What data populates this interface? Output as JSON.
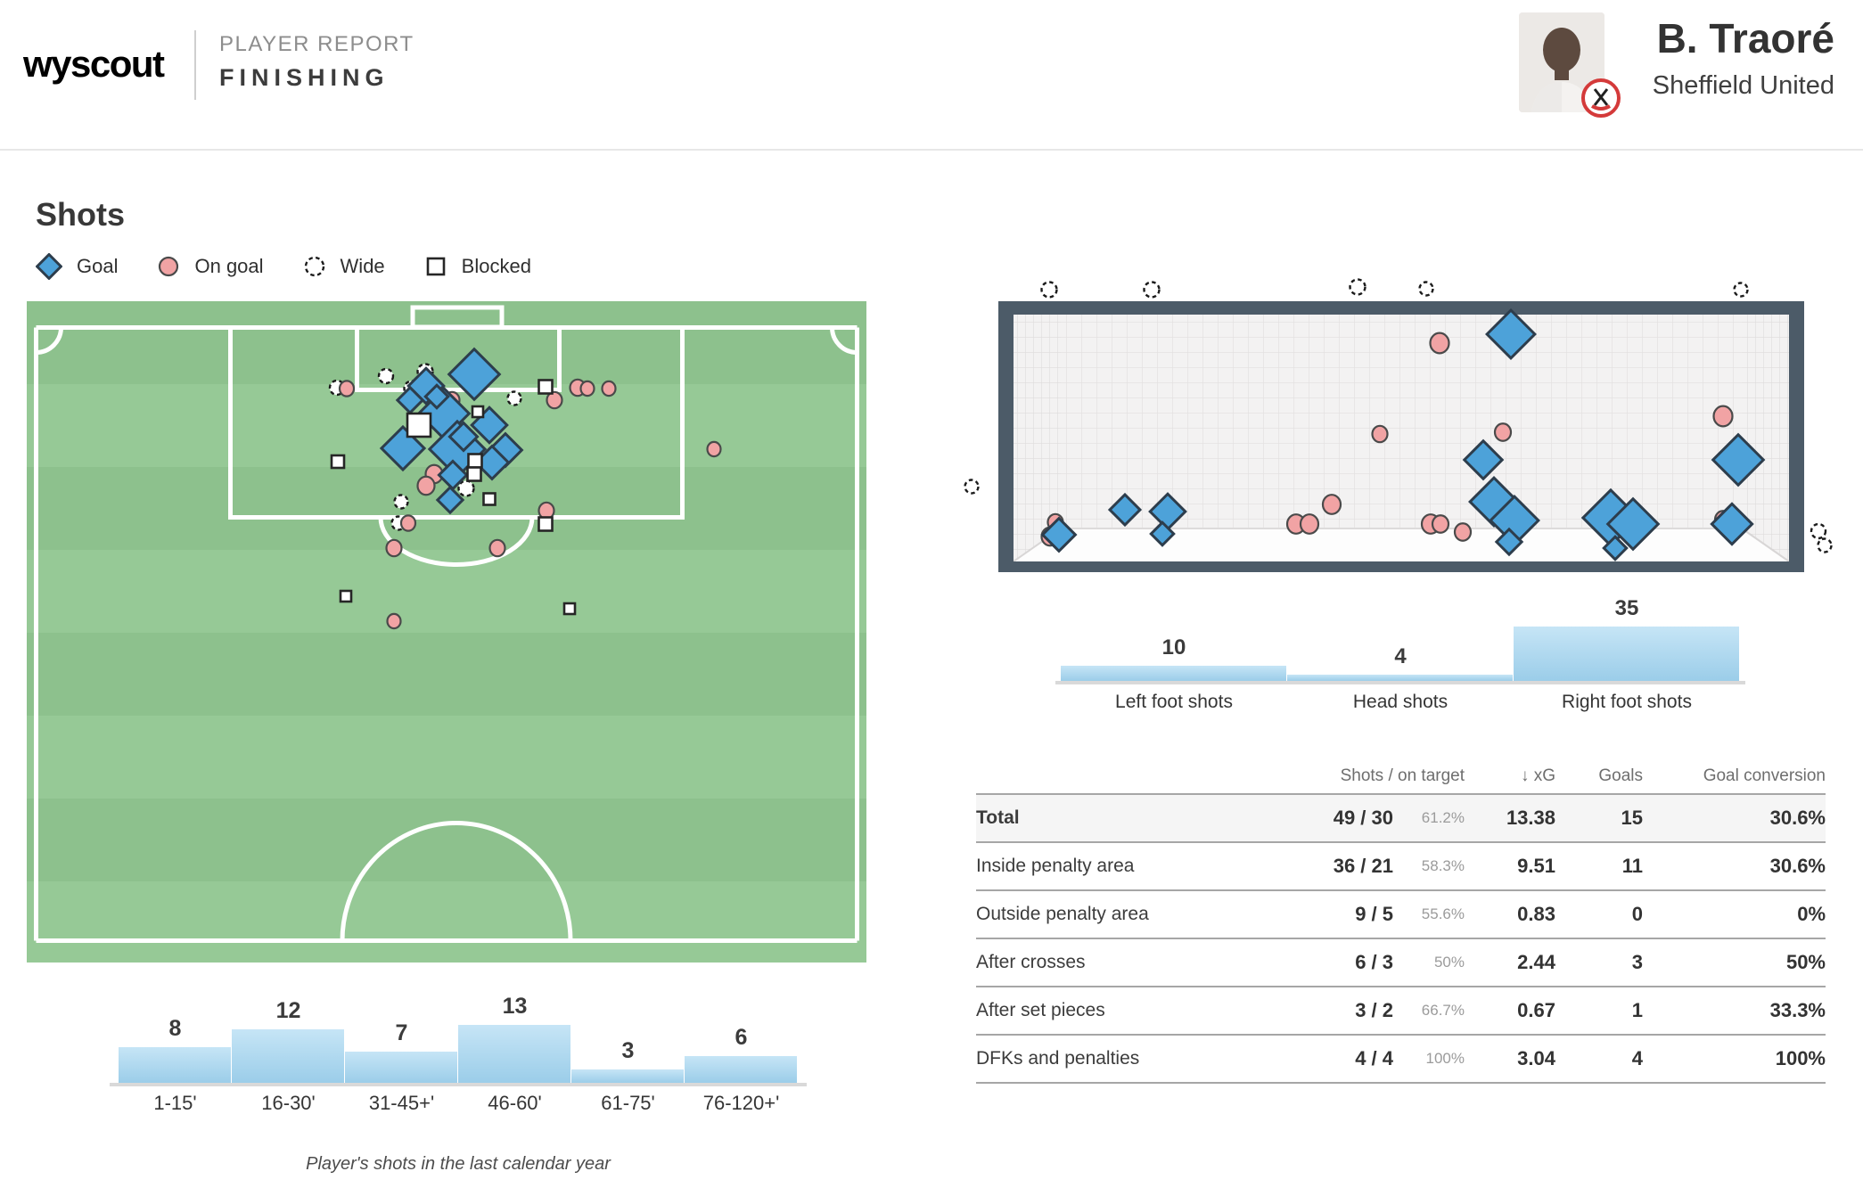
{
  "header": {
    "logo": "wyscout",
    "kicker": "PLAYER REPORT",
    "title": "FINISHING",
    "player_name": "B. Traoré",
    "team": "Sheffield United"
  },
  "shots_section": {
    "title": "Shots",
    "legend": [
      {
        "type": "goal",
        "label": "Goal"
      },
      {
        "type": "on_goal",
        "label": "On goal"
      },
      {
        "type": "wide",
        "label": "Wide"
      },
      {
        "type": "blocked",
        "label": "Blocked"
      }
    ]
  },
  "colors": {
    "goal_marker": "#4da2d9",
    "on_goal_marker": "#f1a3a4",
    "pitch_green_dark": "#8dc18d",
    "pitch_green_light": "#96c996",
    "goal_frame": "#4c5b68",
    "bar_blue_top": "#c6e5f6",
    "bar_blue_bottom": "#9bcde9"
  },
  "chart_data": [
    {
      "type": "scatter",
      "title": "Shot map on pitch (half-pitch, attacking goal at top)",
      "legend": [
        "Goal",
        "On goal",
        "Wide",
        "Blocked"
      ],
      "points": {
        "wide": [
          [
            348,
            97,
            16
          ],
          [
            403,
            84,
            16
          ],
          [
            432,
            98,
            17
          ],
          [
            447,
            79,
            17
          ],
          [
            547,
            109,
            15
          ],
          [
            493,
            210,
            17
          ],
          [
            420,
            225,
            15
          ],
          [
            417,
            249,
            15
          ]
        ],
        "on_goal": [
          [
            359,
            98,
            16
          ],
          [
            477,
            111,
            17
          ],
          [
            457,
            194,
            19
          ],
          [
            448,
            207,
            19
          ],
          [
            592,
            111,
            17
          ],
          [
            618,
            97,
            17
          ],
          [
            629,
            98,
            15
          ],
          [
            653,
            98,
            15
          ],
          [
            583,
            235,
            17
          ],
          [
            412,
            277,
            17
          ],
          [
            528,
            277,
            17
          ],
          [
            412,
            359,
            15
          ],
          [
            771,
            166,
            15
          ],
          [
            428,
            249,
            16
          ]
        ],
        "goal": [
          [
            502,
            82,
            40
          ],
          [
            448,
            95,
            28
          ],
          [
            430,
            111,
            20
          ],
          [
            468,
            126,
            40
          ],
          [
            519,
            139,
            28
          ],
          [
            422,
            165,
            34
          ],
          [
            483,
            166,
            44
          ],
          [
            537,
            167,
            26
          ],
          [
            522,
            181,
            26
          ],
          [
            478,
            195,
            22
          ],
          [
            490,
            152,
            22
          ],
          [
            475,
            223,
            20
          ],
          [
            460,
            107,
            18
          ]
        ],
        "blocked": [
          [
            440,
            139,
            26
          ],
          [
            582,
            96,
            15
          ],
          [
            349,
            180,
            14
          ],
          [
            503,
            179,
            15
          ],
          [
            502,
            194,
            15
          ],
          [
            519,
            222,
            13
          ],
          [
            582,
            250,
            15
          ],
          [
            358,
            331,
            12
          ],
          [
            609,
            345,
            12
          ],
          [
            506,
            124,
            12
          ]
        ]
      }
    },
    {
      "type": "scatter",
      "title": "Shot placement in goal mouth",
      "points": {
        "wide": [
          [
            117,
            15,
            17
          ],
          [
            232,
            15,
            17
          ],
          [
            463,
            12,
            17
          ],
          [
            540,
            14,
            15
          ],
          [
            893,
            15,
            15
          ],
          [
            30,
            236,
            15
          ],
          [
            980,
            286,
            16
          ],
          [
            987,
            302,
            15
          ]
        ],
        "on_goal": [
          [
            555,
            75,
            21
          ],
          [
            873,
            157,
            21
          ],
          [
            488,
            177,
            17
          ],
          [
            626,
            175,
            18
          ],
          [
            118,
            292,
            19
          ],
          [
            124,
            276,
            17
          ],
          [
            394,
            278,
            20
          ],
          [
            409,
            278,
            20
          ],
          [
            434,
            256,
            20
          ],
          [
            545,
            278,
            20
          ],
          [
            556,
            278,
            18
          ],
          [
            581,
            287,
            18
          ],
          [
            873,
            273,
            18
          ]
        ],
        "goal": [
          [
            635,
            65,
            38
          ],
          [
            604,
            206,
            30
          ],
          [
            890,
            206,
            40
          ],
          [
            616,
            253,
            38
          ],
          [
            639,
            274,
            38
          ],
          [
            633,
            298,
            20
          ],
          [
            747,
            271,
            44
          ],
          [
            772,
            278,
            40
          ],
          [
            202,
            262,
            24
          ],
          [
            250,
            264,
            28
          ],
          [
            244,
            289,
            18
          ],
          [
            128,
            290,
            26
          ],
          [
            883,
            278,
            32
          ],
          [
            752,
            305,
            18
          ]
        ]
      }
    },
    {
      "type": "bar",
      "title": "Shots by match period",
      "categories": [
        "1-15'",
        "16-30'",
        "31-45+'",
        "46-60'",
        "61-75'",
        "76-120+'"
      ],
      "values": [
        8,
        12,
        7,
        13,
        3,
        6
      ],
      "caption": "Player's shots in the last calendar year",
      "ylim": [
        0,
        13
      ]
    },
    {
      "type": "bar",
      "title": "Shots by body part",
      "categories": [
        "Left foot shots",
        "Head shots",
        "Right foot shots"
      ],
      "values": [
        10,
        4,
        35
      ],
      "ylim": [
        0,
        35
      ]
    },
    {
      "type": "table",
      "headers": [
        "",
        "Shots / on target",
        "↓ xG",
        "Goals",
        "Goal conversion"
      ],
      "rows": [
        {
          "label": "Total",
          "shots": "49 / 30",
          "pct": "61.2%",
          "xg": "13.38",
          "goals": "15",
          "conv": "30.6%",
          "total": true
        },
        {
          "label": "Inside penalty area",
          "shots": "36 / 21",
          "pct": "58.3%",
          "xg": "9.51",
          "goals": "11",
          "conv": "30.6%"
        },
        {
          "label": "Outside penalty area",
          "shots": "9 / 5",
          "pct": "55.6%",
          "xg": "0.83",
          "goals": "0",
          "conv": "0%"
        },
        {
          "label": "After crosses",
          "shots": "6 / 3",
          "pct": "50%",
          "xg": "2.44",
          "goals": "3",
          "conv": "50%"
        },
        {
          "label": "After set pieces",
          "shots": "3 / 2",
          "pct": "66.7%",
          "xg": "0.67",
          "goals": "1",
          "conv": "33.3%"
        },
        {
          "label": "DFKs and penalties",
          "shots": "4 / 4",
          "pct": "100%",
          "xg": "3.04",
          "goals": "4",
          "conv": "100%"
        }
      ]
    }
  ]
}
